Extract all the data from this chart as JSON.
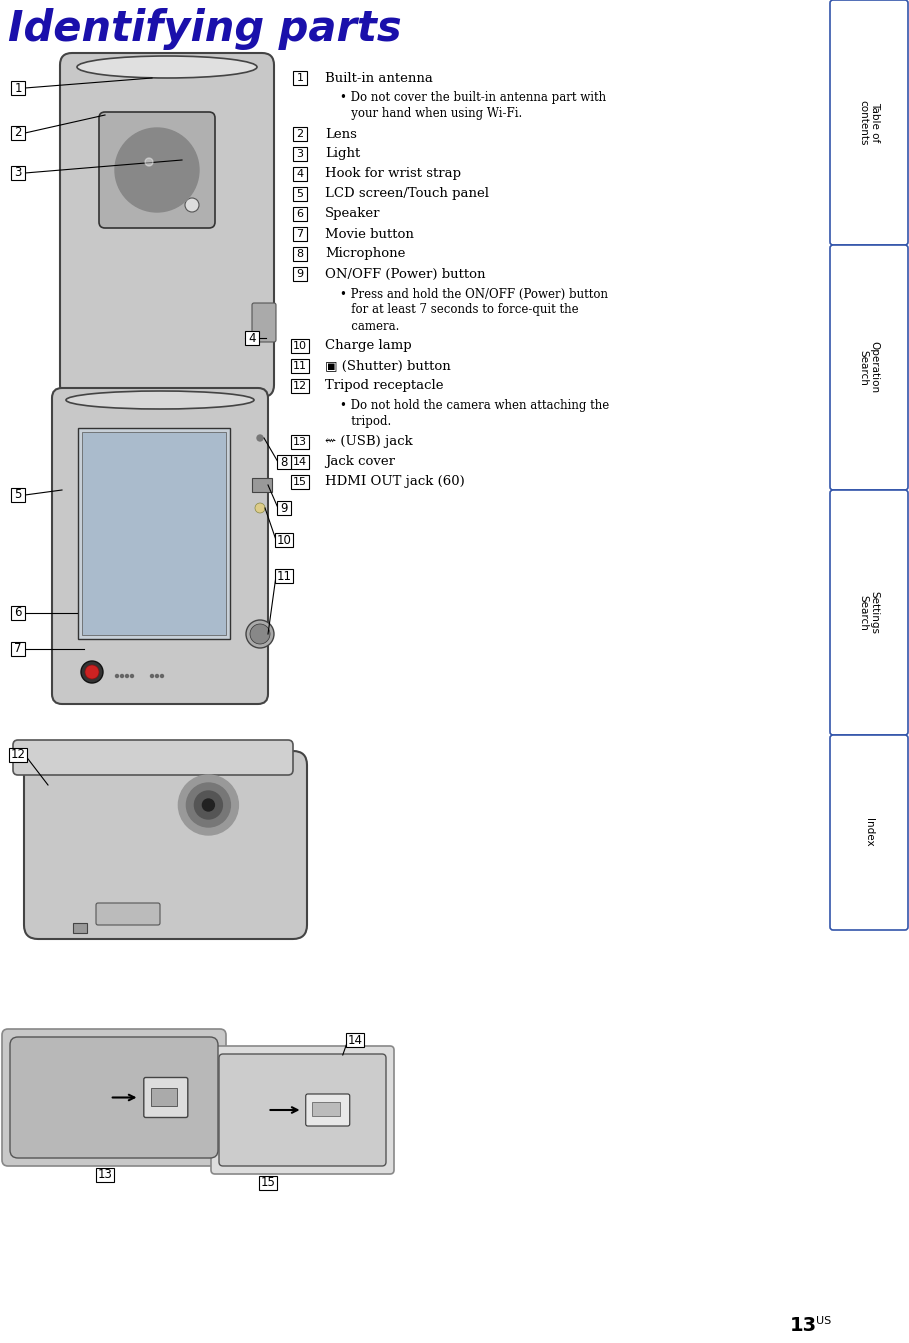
{
  "title": "Identifying parts",
  "title_color": "#1a10ab",
  "bg_color": "#ffffff",
  "page_num": "13",
  "page_num_super": "US",
  "tab_labels": [
    "Table of\ncontents",
    "Operation\nSearch",
    "Settings\nSearch",
    "Index"
  ],
  "tab_color": "#ffffff",
  "tab_border_color": "#3355aa",
  "items": [
    {
      "num": "1",
      "label": "Built-in antenna",
      "sub": "Do not cover the built-in antenna part with\nyour hand when using Wi-Fi.",
      "bold": false
    },
    {
      "num": "2",
      "label": "Lens",
      "sub": "",
      "bold": false
    },
    {
      "num": "3",
      "label": "Light",
      "sub": "",
      "bold": false
    },
    {
      "num": "4",
      "label": "Hook for wrist strap",
      "sub": "",
      "bold": false
    },
    {
      "num": "5",
      "label": "LCD screen/Touch panel",
      "sub": "",
      "bold": false
    },
    {
      "num": "6",
      "label": "Speaker",
      "sub": "",
      "bold": false
    },
    {
      "num": "7",
      "label": "Movie button",
      "sub": "",
      "bold": false
    },
    {
      "num": "8",
      "label": "Microphone",
      "sub": "",
      "bold": false
    },
    {
      "num": "9",
      "label": "ON/OFF (Power) button",
      "sub": "Press and hold the ON/OFF (Power) button\nfor at least 7 seconds to force-quit the\ncamera.",
      "bold": false
    },
    {
      "num": "10",
      "label": "Charge lamp",
      "sub": "",
      "bold": false
    },
    {
      "num": "11",
      "label": "📷 (Shutter) button",
      "sub": "",
      "bold": false
    },
    {
      "num": "12",
      "label": "Tripod receptacle",
      "sub": "Do not hold the camera when attaching the\ntripod.",
      "bold": false
    },
    {
      "num": "13",
      "label": "⇜ (USB) jack",
      "sub": "",
      "bold": false
    },
    {
      "num": "14",
      "label": "Jack cover",
      "sub": "",
      "bold": false
    },
    {
      "num": "15",
      "label": "HDMI OUT jack (60)",
      "sub": "",
      "bold": false
    }
  ],
  "cam_body_color": "#c8c8c8",
  "cam_edge_color": "#444444",
  "cam_dark_color": "#888888",
  "cam_darker_color": "#555555"
}
